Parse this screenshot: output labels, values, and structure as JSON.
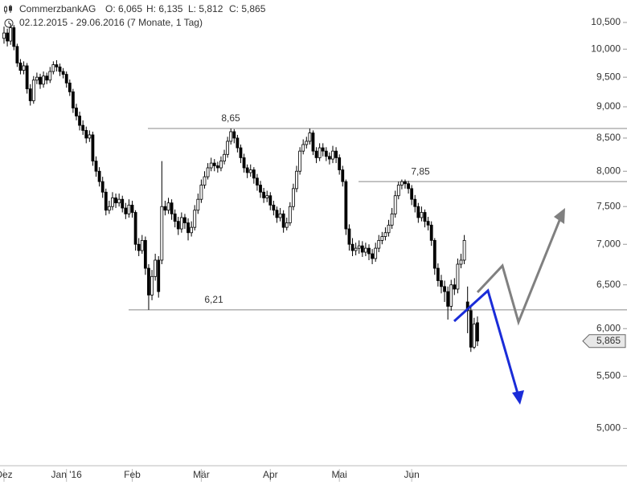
{
  "chart_data": {
    "type": "candlestick",
    "title": "CommerzbankAG",
    "ohlc_labels": [
      "O: 6,065",
      "H: 6,135",
      "L: 5,812",
      "C: 5,865"
    ],
    "subtitle": "02.12.2015 - 29.06.2016 (7 Monate, 1 Tag)",
    "categories": [
      "Dez",
      null,
      null,
      null,
      null,
      null,
      null,
      null,
      null,
      null,
      null,
      null,
      null,
      null,
      null,
      null,
      null,
      null,
      null,
      "Jan '16",
      null,
      null,
      null,
      null,
      null,
      null,
      null,
      null,
      null,
      null,
      null,
      null,
      null,
      null,
      null,
      null,
      null,
      null,
      null,
      "Feb",
      null,
      null,
      null,
      null,
      null,
      null,
      null,
      null,
      null,
      null,
      null,
      null,
      null,
      null,
      null,
      null,
      null,
      null,
      null,
      null,
      "Mär",
      null,
      null,
      null,
      null,
      null,
      null,
      null,
      null,
      null,
      null,
      null,
      null,
      null,
      null,
      null,
      null,
      null,
      null,
      null,
      null,
      "Apr",
      null,
      null,
      null,
      null,
      null,
      null,
      null,
      null,
      null,
      null,
      null,
      null,
      null,
      null,
      null,
      null,
      null,
      null,
      null,
      null,
      "Mai",
      null,
      null,
      null,
      null,
      null,
      null,
      null,
      null,
      null,
      null,
      null,
      null,
      null,
      null,
      null,
      null,
      null,
      null,
      null,
      null,
      null,
      "Jun",
      null,
      null,
      null,
      null,
      null,
      null,
      null,
      null,
      null,
      null,
      null,
      null,
      null,
      null,
      null,
      null,
      null,
      null,
      null,
      null
    ],
    "open": [
      10.2,
      10.3,
      10.15,
      10.4,
      10.05,
      9.75,
      9.62,
      9.7,
      9.3,
      9.1,
      9.45,
      9.5,
      9.38,
      9.52,
      9.45,
      9.6,
      9.72,
      9.68,
      9.6,
      9.55,
      9.4,
      9.25,
      8.98,
      8.85,
      8.7,
      8.62,
      8.5,
      8.55,
      8.15,
      8.0,
      7.85,
      7.7,
      7.45,
      7.5,
      7.62,
      7.55,
      7.6,
      7.48,
      7.4,
      7.52,
      7.42,
      7.0,
      6.92,
      7.05,
      6.7,
      6.38,
      6.6,
      6.8,
      6.8,
      7.5,
      7.45,
      7.55,
      7.4,
      7.3,
      7.2,
      7.35,
      7.28,
      7.15,
      7.22,
      7.45,
      7.6,
      7.8,
      7.92,
      8.05,
      8.12,
      8.08,
      8.05,
      8.15,
      8.25,
      8.45,
      8.6,
      8.5,
      8.35,
      8.2,
      8.05,
      7.98,
      8.02,
      7.9,
      7.8,
      7.7,
      7.62,
      7.65,
      7.52,
      7.45,
      7.35,
      7.4,
      7.22,
      7.28,
      7.5,
      7.75,
      8.0,
      8.3,
      8.4,
      8.45,
      8.58,
      8.3,
      8.2,
      8.35,
      8.3,
      8.22,
      8.18,
      8.3,
      8.2,
      8.02,
      7.85,
      7.2,
      7.0,
      6.92,
      6.95,
      6.98,
      6.9,
      6.95,
      6.88,
      6.82,
      6.95,
      7.05,
      7.1,
      7.15,
      7.25,
      7.4,
      7.65,
      7.8,
      7.85,
      7.82,
      7.75,
      7.6,
      7.5,
      7.35,
      7.42,
      7.3,
      7.25,
      7.05,
      6.7,
      6.55,
      6.48,
      6.42,
      6.25,
      6.5,
      6.45,
      6.75,
      6.8,
      6.3,
      6.2,
      5.8,
      6.065
    ],
    "high": [
      10.42,
      10.38,
      10.48,
      10.45,
      10.1,
      9.82,
      9.78,
      9.75,
      9.38,
      9.52,
      9.58,
      9.56,
      9.6,
      9.58,
      9.68,
      9.78,
      9.8,
      9.74,
      9.66,
      9.6,
      9.46,
      9.3,
      9.05,
      8.92,
      8.78,
      8.68,
      8.62,
      8.6,
      8.22,
      8.06,
      7.92,
      7.75,
      7.58,
      7.7,
      7.68,
      7.68,
      7.65,
      7.55,
      7.6,
      7.58,
      7.45,
      7.08,
      7.12,
      7.1,
      6.75,
      6.68,
      6.88,
      6.85,
      8.15,
      7.58,
      7.62,
      7.6,
      7.46,
      7.36,
      7.42,
      7.4,
      7.34,
      7.3,
      7.52,
      7.68,
      7.88,
      8.0,
      8.12,
      8.2,
      8.18,
      8.14,
      8.22,
      8.32,
      8.52,
      8.65,
      8.64,
      8.55,
      8.4,
      8.26,
      8.1,
      8.1,
      8.06,
      7.96,
      7.86,
      7.76,
      7.72,
      7.7,
      7.58,
      7.5,
      7.48,
      7.45,
      7.35,
      7.56,
      7.82,
      8.08,
      8.36,
      8.48,
      8.52,
      8.65,
      8.62,
      8.36,
      8.42,
      8.42,
      8.36,
      8.28,
      8.38,
      8.36,
      8.25,
      8.08,
      7.88,
      7.26,
      7.08,
      7.02,
      7.05,
      7.04,
      7.02,
      7.0,
      6.94,
      7.02,
      7.12,
      7.16,
      7.22,
      7.32,
      7.48,
      7.72,
      7.85,
      7.88,
      7.88,
      7.86,
      7.8,
      7.66,
      7.55,
      7.5,
      7.46,
      7.36,
      7.3,
      7.08,
      6.76,
      6.62,
      6.55,
      6.48,
      6.56,
      6.58,
      6.82,
      6.88,
      7.12,
      6.48,
      6.25,
      6.12,
      6.135
    ],
    "low": [
      10.1,
      10.05,
      10.08,
      9.98,
      9.68,
      9.55,
      9.55,
      9.22,
      9.02,
      9.05,
      9.38,
      9.3,
      9.32,
      9.38,
      9.4,
      9.55,
      9.6,
      9.52,
      9.48,
      9.32,
      9.18,
      8.9,
      8.78,
      8.62,
      8.55,
      8.42,
      8.44,
      8.08,
      7.92,
      7.78,
      7.62,
      7.38,
      7.4,
      7.45,
      7.48,
      7.5,
      7.42,
      7.33,
      7.35,
      7.35,
      6.92,
      6.85,
      6.88,
      6.62,
      6.21,
      6.32,
      6.55,
      6.35,
      6.75,
      7.38,
      7.4,
      7.32,
      7.22,
      7.12,
      7.15,
      7.2,
      7.05,
      7.1,
      7.18,
      7.4,
      7.55,
      7.75,
      7.88,
      8.0,
      8.0,
      7.98,
      8.0,
      8.1,
      8.2,
      8.4,
      8.42,
      8.28,
      8.12,
      7.98,
      7.9,
      7.92,
      7.82,
      7.72,
      7.62,
      7.55,
      7.56,
      7.45,
      7.38,
      7.28,
      7.3,
      7.15,
      7.18,
      7.24,
      7.45,
      7.7,
      7.95,
      8.25,
      8.34,
      8.4,
      8.24,
      8.12,
      8.15,
      8.22,
      8.15,
      8.1,
      8.12,
      8.12,
      7.95,
      7.78,
      7.12,
      6.92,
      6.85,
      6.86,
      6.88,
      6.84,
      6.85,
      6.8,
      6.75,
      6.78,
      6.9,
      7.0,
      7.05,
      7.1,
      7.2,
      7.35,
      7.6,
      7.74,
      7.75,
      7.68,
      7.52,
      7.42,
      7.28,
      7.3,
      7.22,
      7.18,
      6.98,
      6.62,
      6.48,
      6.4,
      6.3,
      6.1,
      6.2,
      6.38,
      6.4,
      6.7,
      6.75,
      5.95,
      5.75,
      5.78,
      5.812
    ],
    "close": [
      10.3,
      10.15,
      10.4,
      10.05,
      9.75,
      9.62,
      9.7,
      9.3,
      9.1,
      9.45,
      9.5,
      9.38,
      9.52,
      9.45,
      9.6,
      9.72,
      9.68,
      9.6,
      9.55,
      9.4,
      9.25,
      8.98,
      8.85,
      8.7,
      8.62,
      8.5,
      8.55,
      8.15,
      8.0,
      7.85,
      7.7,
      7.45,
      7.5,
      7.62,
      7.55,
      7.6,
      7.48,
      7.4,
      7.52,
      7.42,
      7.0,
      6.92,
      7.05,
      6.7,
      6.38,
      6.6,
      6.8,
      6.42,
      7.5,
      7.45,
      7.55,
      7.4,
      7.3,
      7.2,
      7.35,
      7.28,
      7.15,
      7.22,
      7.45,
      7.6,
      7.8,
      7.92,
      8.05,
      8.12,
      8.08,
      8.05,
      8.15,
      8.25,
      8.45,
      8.6,
      8.5,
      8.35,
      8.2,
      8.05,
      7.98,
      8.02,
      7.9,
      7.8,
      7.7,
      7.62,
      7.65,
      7.52,
      7.45,
      7.35,
      7.4,
      7.22,
      7.28,
      7.5,
      7.75,
      8.0,
      8.3,
      8.4,
      8.45,
      8.58,
      8.3,
      8.2,
      8.35,
      8.3,
      8.22,
      8.18,
      8.3,
      8.2,
      8.02,
      7.85,
      7.2,
      7.0,
      6.92,
      6.95,
      6.98,
      6.9,
      6.95,
      6.88,
      6.82,
      6.95,
      7.05,
      7.1,
      7.15,
      7.25,
      7.4,
      7.65,
      7.8,
      7.85,
      7.82,
      7.75,
      7.6,
      7.5,
      7.35,
      7.42,
      7.3,
      7.25,
      7.05,
      6.7,
      6.55,
      6.48,
      6.42,
      6.25,
      6.5,
      6.45,
      6.75,
      6.8,
      7.05,
      6.2,
      5.8,
      6.05,
      5.865
    ],
    "up_color": "#ffffff",
    "down_color": "#000000",
    "log_scale": true,
    "ylim": [
      4.67,
      10.94
    ],
    "yticks": [
      {
        "value": 5,
        "label": "5,000"
      },
      {
        "value": 5.5,
        "label": "5,500"
      },
      {
        "value": 6,
        "label": "6,000"
      },
      {
        "value": 6.5,
        "label": "6,500"
      },
      {
        "value": 7,
        "label": "7,000"
      },
      {
        "value": 7.5,
        "label": "7,500"
      },
      {
        "value": 8,
        "label": "8,000"
      },
      {
        "value": 8.5,
        "label": "8,500"
      },
      {
        "value": 9,
        "label": "9,000"
      },
      {
        "value": 9.5,
        "label": "9,500"
      },
      {
        "value": 10,
        "label": "10,000"
      },
      {
        "value": 10.5,
        "label": "10,500"
      }
    ],
    "levels": [
      {
        "value": 8.65,
        "label": "8,65"
      },
      {
        "value": 7.85,
        "label": "7,85"
      },
      {
        "value": 6.21,
        "label": "6,21"
      }
    ],
    "last_price": {
      "value": 5.865,
      "label": "5,865"
    }
  }
}
